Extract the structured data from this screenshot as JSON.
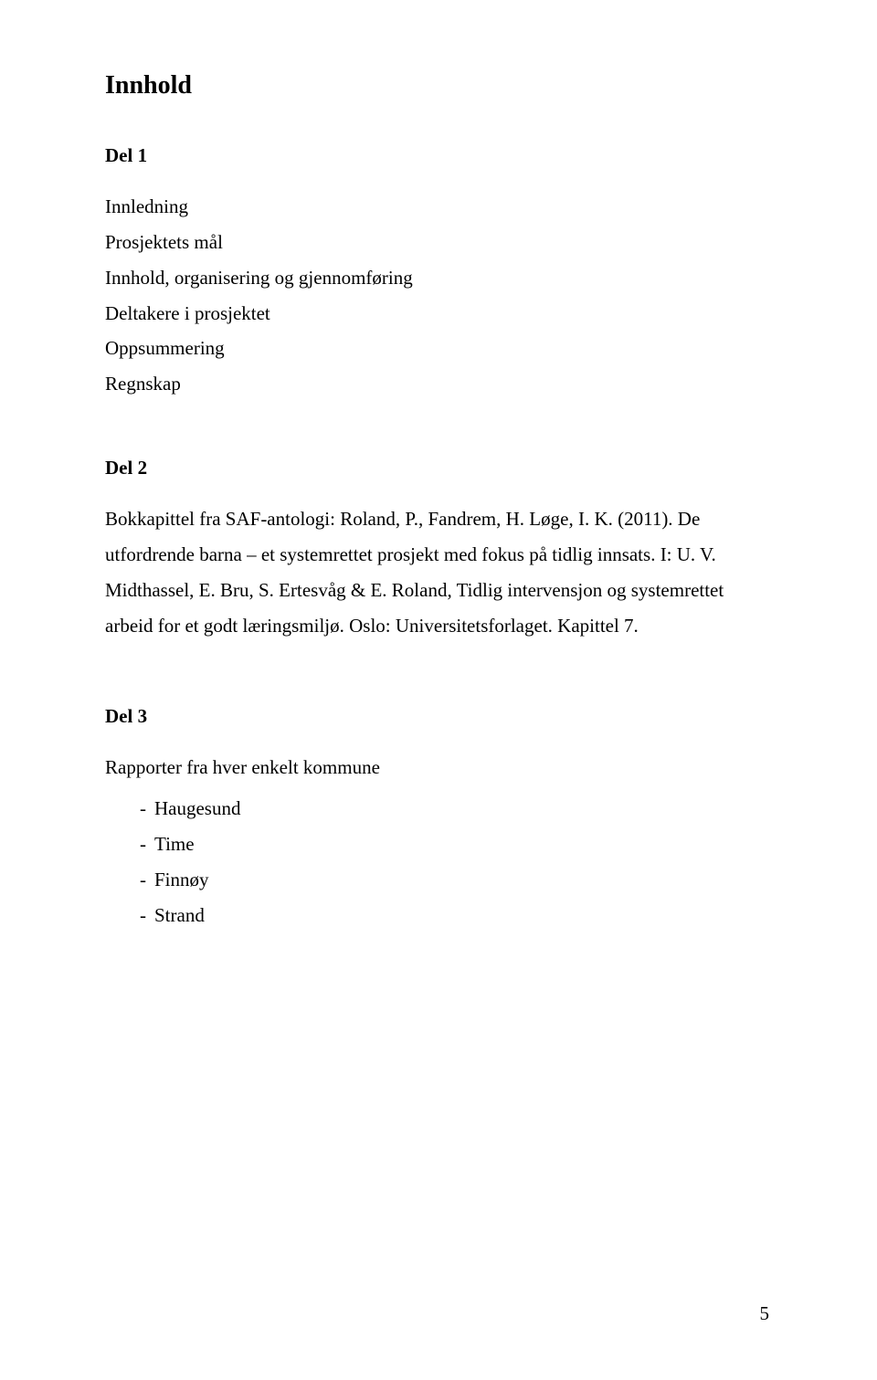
{
  "page": {
    "title": "Innhold",
    "pageNumber": "5"
  },
  "del1": {
    "heading": "Del 1",
    "lines": [
      "Innledning",
      "Prosjektets mål",
      "Innhold, organisering og gjennomføring",
      "Deltakere i prosjektet",
      "Oppsummering",
      "Regnskap"
    ]
  },
  "del2": {
    "heading": "Del 2",
    "paragraph": "Bokkapittel fra SAF-antologi: Roland, P., Fandrem, H. Løge, I. K. (2011). De utfordrende barna – et systemrettet prosjekt med fokus på tidlig innsats. I: U. V. Midthassel, E. Bru, S. Ertesvåg & E. Roland, Tidlig intervensjon og systemrettet arbeid for et godt læringsmiljø. Oslo: Universitetsforlaget. Kapittel 7."
  },
  "del3": {
    "heading": "Del 3",
    "intro": "Rapporter fra hver enkelt kommune",
    "bullets": [
      "Haugesund",
      "Time",
      "Finnøy",
      "Strand"
    ]
  }
}
